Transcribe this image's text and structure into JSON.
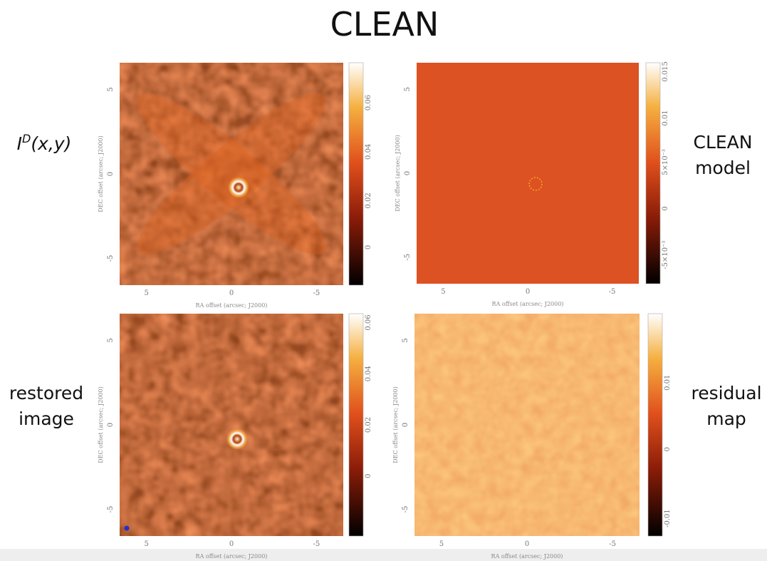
{
  "title": "CLEAN",
  "panels": [
    {
      "label": {
        "base": "I",
        "sup": "D",
        "rest": "(x,y)"
      },
      "y_axis_label": "DEC offset (arcsec; J2000)",
      "x_axis_label": "RA offset (arcsec; J2000)",
      "x_ticks": [
        "5",
        "0",
        "-5"
      ],
      "y_ticks": [
        "5",
        "0",
        "-5"
      ],
      "colorbar_ticks": [
        "0.06",
        "0.04",
        "0.02",
        "0"
      ]
    },
    {
      "label_lines": [
        "CLEAN",
        "model"
      ],
      "y_axis_label": "DEC offset (arcsec; J2000)",
      "x_axis_label": "RA offset (arcsec; J2000)",
      "x_ticks": [
        "5",
        "0",
        "-5"
      ],
      "y_ticks": [
        "5",
        "0",
        "-5"
      ],
      "colorbar_ticks": [
        "0.015",
        "0.01",
        "5×10⁻³",
        "0",
        "-5×10⁻³"
      ]
    },
    {
      "label_lines": [
        "restored",
        "image"
      ],
      "y_axis_label": "DEC offset (arcsec; J2000)",
      "x_axis_label": "RA offset (arcsec; J2000)",
      "x_ticks": [
        "5",
        "0",
        "-5"
      ],
      "y_ticks": [
        "5",
        "0",
        "-5"
      ],
      "colorbar_ticks": [
        "0.06",
        "0.04",
        "0.02",
        "0"
      ]
    },
    {
      "label_lines": [
        "residual",
        "map"
      ],
      "y_axis_label": "DEC offset (arcsec; J2000)",
      "x_axis_label": "RA offset (arcsec; J2000)",
      "x_ticks": [
        "5",
        "0",
        "-5"
      ],
      "y_ticks": [
        "5",
        "0",
        "-5"
      ],
      "colorbar_ticks": [
        "0.01",
        "0",
        "-0.01"
      ]
    }
  ]
}
